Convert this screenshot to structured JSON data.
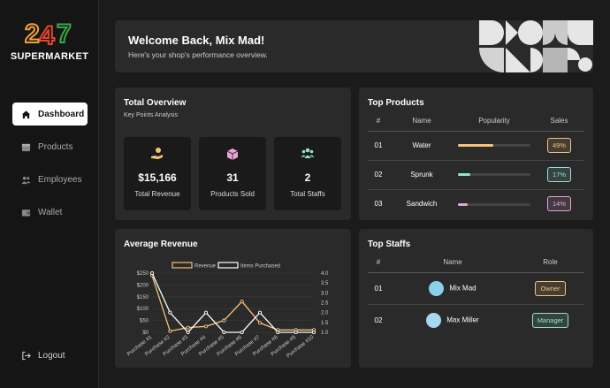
{
  "brand": {
    "logo_text": "247",
    "name": "SUPERMARKET"
  },
  "nav": {
    "items": [
      {
        "label": "Dashboard",
        "icon": "home-icon",
        "active": true
      },
      {
        "label": "Products",
        "icon": "box-icon",
        "active": false
      },
      {
        "label": "Employees",
        "icon": "users-icon",
        "active": false
      },
      {
        "label": "Wallet",
        "icon": "wallet-icon",
        "active": false
      }
    ],
    "logout_label": "Logout"
  },
  "welcome": {
    "title": "Welcome Back, Mix Mad!",
    "subtitle": "Here's your shop's performance overview."
  },
  "overview": {
    "title": "Total Overview",
    "subtitle": "Key Points Analysis",
    "stats": [
      {
        "value": "$15,166",
        "label": "Total Revenue",
        "icon": "money-hand-icon",
        "color": "#f5c27a"
      },
      {
        "value": "31",
        "label": "Products Sold",
        "icon": "box-icon",
        "color": "#e7a4d6"
      },
      {
        "value": "2",
        "label": "Total Staffs",
        "icon": "users-icon",
        "color": "#8fe3c8"
      }
    ]
  },
  "top_products": {
    "title": "Top Products",
    "headers": [
      "#",
      "Name",
      "Popularity",
      "Sales"
    ],
    "rows": [
      {
        "rank": "01",
        "name": "Water",
        "popularity": 0.49,
        "sales": "49%",
        "color": "#f5c27a"
      },
      {
        "rank": "02",
        "name": "Sprunk",
        "popularity": 0.17,
        "sales": "17%",
        "color": "#8fe3d8"
      },
      {
        "rank": "03",
        "name": "Sandwich",
        "popularity": 0.14,
        "sales": "14%",
        "color": "#e7a4d6"
      }
    ]
  },
  "average_revenue": {
    "title": "Average Revenue"
  },
  "chart_data": {
    "type": "line",
    "title": "Average Revenue",
    "categories": [
      "Purchase #1",
      "Purchase #2",
      "Purchase #3",
      "Purchase #4",
      "Purchase #5",
      "Purchase #6",
      "Purchase #7",
      "Purchase #8",
      "Purchase #9",
      "Purchase #10"
    ],
    "series": [
      {
        "name": "Revenue",
        "axis": "left",
        "color": "#f5c27a",
        "values": [
          240,
          5,
          20,
          25,
          50,
          130,
          40,
          10,
          10,
          10
        ]
      },
      {
        "name": "Items Purchased",
        "axis": "right",
        "color": "#ffffff",
        "values": [
          4.0,
          2.0,
          1.0,
          2.0,
          1.0,
          1.0,
          2.0,
          1.0,
          1.0,
          1.0
        ]
      }
    ],
    "left_axis": {
      "ylim": [
        0,
        250
      ],
      "ticks": [
        "$0",
        "$50",
        "$100",
        "$150",
        "$200",
        "$250"
      ]
    },
    "right_axis": {
      "ylim": [
        1.0,
        4.0
      ],
      "ticks": [
        "1.0",
        "1.5",
        "2.0",
        "2.5",
        "3.0",
        "3.5",
        "4.0"
      ]
    },
    "legend": "top",
    "grid": true
  },
  "top_staffs": {
    "title": "Top Staffs",
    "headers": [
      "#",
      "Name",
      "Role"
    ],
    "rows": [
      {
        "rank": "01",
        "name": "Mix Mad",
        "role": "Owner",
        "color": "#f5c27a"
      },
      {
        "rank": "02",
        "name": "Max Miller",
        "role": "Manager",
        "color": "#8fe3c8"
      }
    ]
  }
}
